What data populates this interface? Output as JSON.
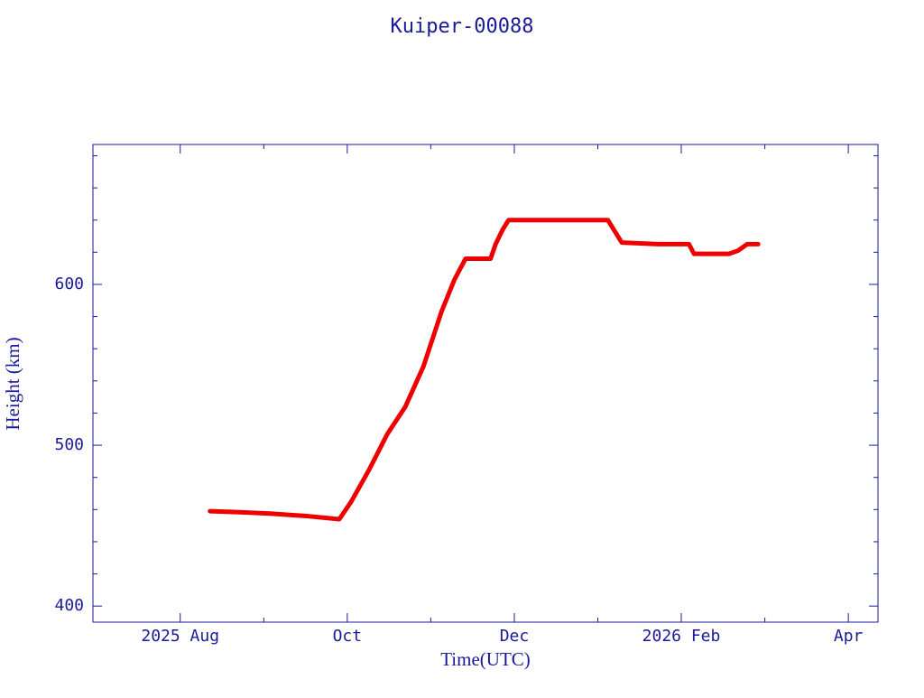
{
  "chart_data": {
    "type": "line",
    "title": "Kuiper-00088",
    "x_label": "Time(UTC)",
    "y_label": "Height (km)",
    "x": [
      2025.613,
      2025.637,
      2025.673,
      2025.709,
      2025.742,
      2025.754,
      2025.772,
      2025.79,
      2025.808,
      2025.826,
      2025.844,
      2025.857,
      2025.868,
      2025.893,
      2025.898,
      2025.905,
      2025.911,
      2025.961,
      2026.01,
      2026.024,
      2026.06,
      2026.091,
      2026.096,
      2026.131,
      2026.14,
      2026.149,
      2026.16
    ],
    "series": [
      {
        "color": "#ee0000",
        "values": [
          459,
          458.5,
          457.5,
          456,
          454,
          465,
          485,
          507,
          524,
          549,
          583,
          603,
          616,
          616,
          625,
          634,
          640,
          640,
          640,
          626,
          625,
          625,
          619,
          619,
          621,
          625,
          625
        ]
      }
    ],
    "xlim": [
      2025.4962,
      2026.2796
    ],
    "xticks": [
      {
        "value": 2025.5833,
        "label": "2025 Aug"
      },
      {
        "value": 2025.75,
        "label": "Oct"
      },
      {
        "value": 2025.9167,
        "label": "Dec"
      },
      {
        "value": 2026.0833,
        "label": "2026 Feb"
      },
      {
        "value": 2026.25,
        "label": "Apr"
      }
    ],
    "xminorticks": [
      2025.6667,
      2025.8333,
      2026.0,
      2026.1667
    ],
    "ylim": [
      390,
      687
    ],
    "yticks": [
      400,
      500,
      600
    ],
    "yminorticks": [
      420,
      440,
      460,
      480,
      520,
      540,
      560,
      580,
      620,
      640,
      660,
      680
    ],
    "axis_color": "#1a1a99"
  }
}
